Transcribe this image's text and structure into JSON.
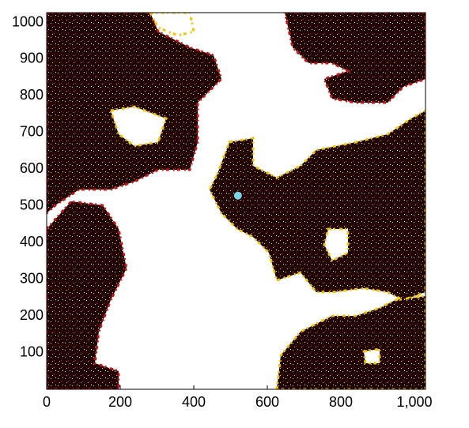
{
  "chart_data": {
    "type": "scatter",
    "xlim": [
      0,
      1030
    ],
    "ylim": [
      0,
      1027
    ],
    "xticks": [
      0,
      200,
      400,
      600,
      800,
      {
        "value": 1000,
        "label": "1,000"
      }
    ],
    "yticks": [
      100,
      200,
      300,
      400,
      500,
      600,
      700,
      800,
      900,
      1000
    ],
    "series": [
      {
        "color": "#7fd3e8",
        "x": [
          520
        ],
        "values": [
          528
        ]
      }
    ]
  }
}
